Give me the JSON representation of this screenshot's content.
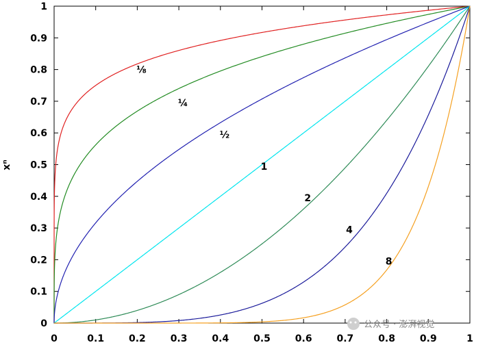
{
  "chart_data": {
    "type": "line",
    "title": "",
    "xlabel": "",
    "ylabel": "xⁿ",
    "xlim": [
      0,
      1
    ],
    "ylim": [
      0,
      1
    ],
    "grid": false,
    "x_ticks": [
      "0",
      "0.1",
      "0.2",
      "0.3",
      "0.4",
      "0.5",
      "0.6",
      "0.7",
      "0.8",
      "0.9",
      "1"
    ],
    "y_ticks": [
      "0",
      "0.1",
      "0.2",
      "0.3",
      "0.4",
      "0.5",
      "0.6",
      "0.7",
      "0.8",
      "0.9",
      "1"
    ],
    "series": [
      {
        "name": "⅛",
        "exponent": 0.125,
        "color": "#e02020",
        "label_at": [
          0.21,
          0.8
        ]
      },
      {
        "name": "¼",
        "exponent": 0.25,
        "color": "#228b22",
        "label_at": [
          0.31,
          0.695
        ]
      },
      {
        "name": "½",
        "exponent": 0.5,
        "color": "#2020b0",
        "label_at": [
          0.41,
          0.595
        ]
      },
      {
        "name": "1",
        "exponent": 1,
        "color": "#00e5ee",
        "label_at": [
          0.505,
          0.495
        ]
      },
      {
        "name": "2",
        "exponent": 2,
        "color": "#2e8b57",
        "label_at": [
          0.61,
          0.395
        ]
      },
      {
        "name": "4",
        "exponent": 4,
        "color": "#1a1a9a",
        "label_at": [
          0.71,
          0.295
        ]
      },
      {
        "name": "8",
        "exponent": 8,
        "color": "#f5a020",
        "label_at": [
          0.805,
          0.195
        ]
      }
    ]
  },
  "watermark": {
    "text": "公众号 · 澎湃视觉"
  }
}
